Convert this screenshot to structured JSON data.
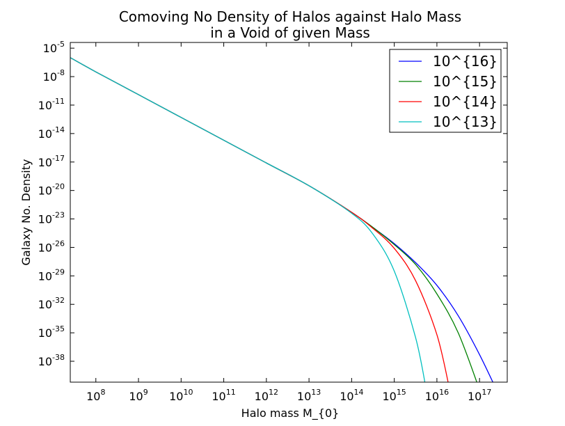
{
  "chart_data": {
    "type": "line",
    "title_lines": [
      "Comoving No Density of Halos against Halo Mass",
      "in a Void of given Mass"
    ],
    "xlabel": "Halo mass M_{0}",
    "ylabel": "Galaxy No. Density",
    "x_scale": "log",
    "y_scale": "log",
    "xlim_log10": [
      7.4,
      17.65
    ],
    "ylim_log10": [
      -40.2,
      -4.4
    ],
    "grid": false,
    "legend_placement": "top-right",
    "x_ticks": [
      {
        "base": "10",
        "exp": "8",
        "log10": 8
      },
      {
        "base": "10",
        "exp": "9",
        "log10": 9
      },
      {
        "base": "10",
        "exp": "10",
        "log10": 10
      },
      {
        "base": "10",
        "exp": "11",
        "log10": 11
      },
      {
        "base": "10",
        "exp": "12",
        "log10": 12
      },
      {
        "base": "10",
        "exp": "13",
        "log10": 13
      },
      {
        "base": "10",
        "exp": "14",
        "log10": 14
      },
      {
        "base": "10",
        "exp": "15",
        "log10": 15
      },
      {
        "base": "10",
        "exp": "16",
        "log10": 16
      },
      {
        "base": "10",
        "exp": "17",
        "log10": 17
      }
    ],
    "y_ticks": [
      {
        "base": "10",
        "exp": "-5",
        "log10": -5
      },
      {
        "base": "10",
        "exp": "-8",
        "log10": -8
      },
      {
        "base": "10",
        "exp": "-11",
        "log10": -11
      },
      {
        "base": "10",
        "exp": "-14",
        "log10": -14
      },
      {
        "base": "10",
        "exp": "-17",
        "log10": -17
      },
      {
        "base": "10",
        "exp": "-20",
        "log10": -20
      },
      {
        "base": "10",
        "exp": "-23",
        "log10": -23
      },
      {
        "base": "10",
        "exp": "-26",
        "log10": -26
      },
      {
        "base": "10",
        "exp": "-29",
        "log10": -29
      },
      {
        "base": "10",
        "exp": "-32",
        "log10": -32
      },
      {
        "base": "10",
        "exp": "-35",
        "log10": -35
      },
      {
        "base": "10",
        "exp": "-38",
        "log10": -38
      }
    ],
    "series": [
      {
        "name": "10^{16}",
        "color": "#0000ff",
        "points_log10": [
          [
            7.4,
            -6.0
          ],
          [
            8,
            -7.5
          ],
          [
            9,
            -9.9
          ],
          [
            10,
            -12.3
          ],
          [
            11,
            -14.7
          ],
          [
            12,
            -17.1
          ],
          [
            13,
            -19.5
          ],
          [
            14,
            -22.3
          ],
          [
            14.5,
            -23.9
          ],
          [
            15,
            -25.6
          ],
          [
            15.5,
            -27.6
          ],
          [
            16,
            -30.0
          ],
          [
            16.5,
            -33.2
          ],
          [
            17,
            -37.3
          ],
          [
            17.5,
            -42.0
          ]
        ]
      },
      {
        "name": "10^{15}",
        "color": "#008000",
        "points_log10": [
          [
            7.4,
            -6.0
          ],
          [
            8,
            -7.5
          ],
          [
            9,
            -9.9
          ],
          [
            10,
            -12.3
          ],
          [
            11,
            -14.7
          ],
          [
            12,
            -17.1
          ],
          [
            13,
            -19.5
          ],
          [
            14,
            -22.3
          ],
          [
            14.5,
            -23.9
          ],
          [
            15,
            -25.7
          ],
          [
            15.5,
            -27.8
          ],
          [
            16,
            -30.9
          ],
          [
            16.5,
            -35.0
          ],
          [
            17,
            -41.0
          ]
        ]
      },
      {
        "name": "10^{14}",
        "color": "#ff0000",
        "points_log10": [
          [
            7.4,
            -6.0
          ],
          [
            8,
            -7.5
          ],
          [
            9,
            -9.9
          ],
          [
            10,
            -12.3
          ],
          [
            11,
            -14.7
          ],
          [
            12,
            -17.1
          ],
          [
            13,
            -19.5
          ],
          [
            14,
            -22.3
          ],
          [
            14.5,
            -24.0
          ],
          [
            15,
            -26.1
          ],
          [
            15.5,
            -29.5
          ],
          [
            16,
            -35.2
          ],
          [
            16.3,
            -41.0
          ]
        ]
      },
      {
        "name": "10^{13}",
        "color": "#00bfbf",
        "points_log10": [
          [
            7.4,
            -6.0
          ],
          [
            8,
            -7.5
          ],
          [
            9,
            -9.9
          ],
          [
            10,
            -12.3
          ],
          [
            11,
            -14.7
          ],
          [
            12,
            -17.1
          ],
          [
            13,
            -19.5
          ],
          [
            14,
            -22.4
          ],
          [
            14.5,
            -24.6
          ],
          [
            15,
            -28.5
          ],
          [
            15.5,
            -35.5
          ],
          [
            15.75,
            -41.0
          ]
        ]
      }
    ]
  }
}
